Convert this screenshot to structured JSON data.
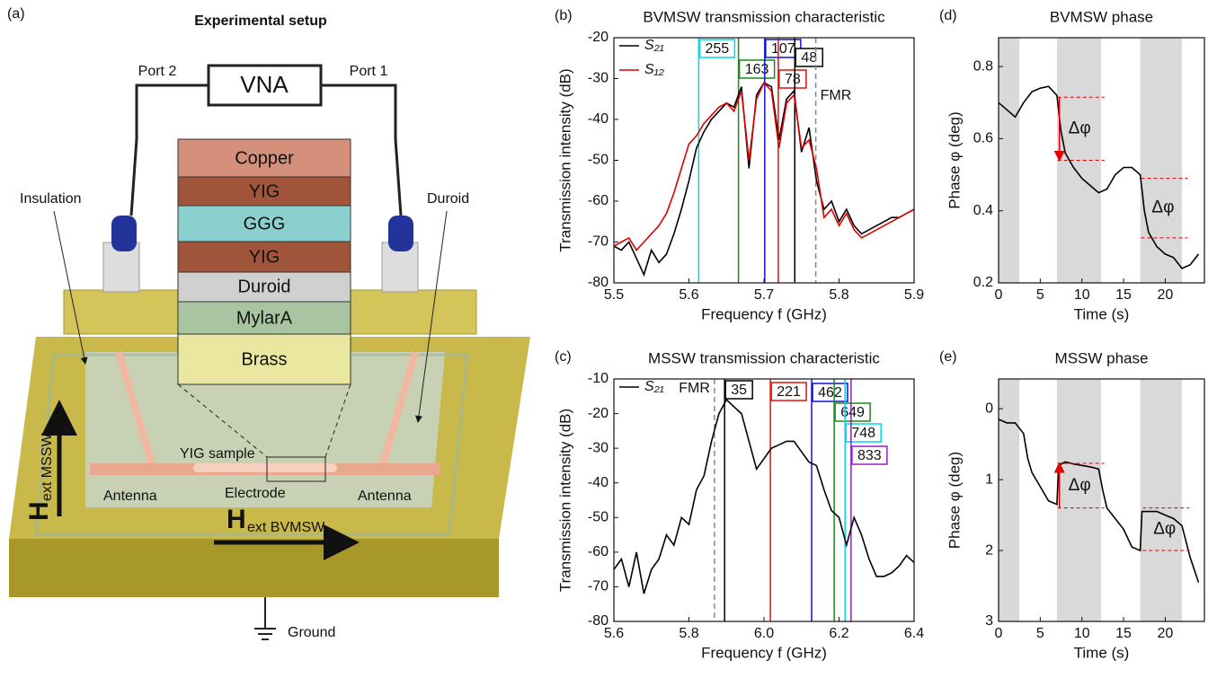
{
  "diagram": {
    "panel_label": "(a)",
    "title": "Experimental setup",
    "vna": "VNA",
    "port2": "Port 2",
    "port1": "Port 1",
    "layers": [
      "Copper",
      "YIG",
      "GGG",
      "YIG",
      "Duroid",
      "MylarA",
      "Brass"
    ],
    "insulation": "Insulation",
    "duroid": "Duroid",
    "sample": "YIG sample",
    "antenna_left": "Antenna",
    "electrode": "Electrode",
    "antenna_right": "Antenna",
    "h_mssw": {
      "symbol": "H",
      "subscript": "ext MSSW"
    },
    "h_bvmsw": {
      "symbol": "H",
      "subscript": "ext BVMSW"
    },
    "ground": "Ground"
  },
  "chart_data": [
    {
      "type": "line",
      "panel_label": "(b)",
      "title": "BVMSW transmission characteristic",
      "x_label": "Frequency f (GHz)",
      "y_label": "Transmission intensity (dB)",
      "x": [
        5.5,
        5.51,
        5.52,
        5.53,
        5.54,
        5.55,
        5.56,
        5.57,
        5.58,
        5.59,
        5.6,
        5.61,
        5.62,
        5.63,
        5.64,
        5.65,
        5.66,
        5.67,
        5.68,
        5.69,
        5.7,
        5.71,
        5.72,
        5.73,
        5.74,
        5.75,
        5.76,
        5.77,
        5.78,
        5.79,
        5.8,
        5.81,
        5.82,
        5.83,
        5.84,
        5.85,
        5.86,
        5.87,
        5.88,
        5.89,
        5.9
      ],
      "series": [
        {
          "name": "S₂₁",
          "color": "#000000",
          "values": [
            -71,
            -72,
            -70,
            -74,
            -78,
            -72,
            -75,
            -73,
            -68,
            -62,
            -55,
            -47,
            -43,
            -40,
            -38,
            -36,
            -37,
            -32,
            -52,
            -34,
            -31,
            -32,
            -45,
            -35,
            -33,
            -48,
            -42,
            -55,
            -62,
            -60,
            -65,
            -62,
            -66,
            -68,
            -67,
            -66,
            -65,
            -64,
            -64,
            -63,
            -62
          ]
        },
        {
          "name": "S₁₂",
          "color": "#e00000",
          "values": [
            -71,
            -70,
            -69,
            -72,
            -70,
            -68,
            -66,
            -63,
            -58,
            -52,
            -46,
            -44,
            -41,
            -39,
            -37,
            -36,
            -38,
            -33,
            -50,
            -35,
            -31,
            -33,
            -47,
            -36,
            -34,
            -47,
            -45,
            -52,
            -64,
            -62,
            -66,
            -63,
            -67,
            -69,
            -68,
            -67,
            -66,
            -65,
            -64,
            -63,
            -62
          ]
        }
      ],
      "markers": [
        {
          "x": 5.613,
          "value": 255,
          "color": "#00d8e8"
        },
        {
          "x": 5.666,
          "value": 163,
          "color": "#1a8a1a"
        },
        {
          "x": 5.701,
          "value": 107,
          "color": "#1010d0"
        },
        {
          "x": 5.719,
          "value": 78,
          "color": "#e01010"
        },
        {
          "x": 5.741,
          "value": 48,
          "color": "#000000"
        },
        {
          "x": 5.769,
          "label": "FMR",
          "color": "#888888",
          "dashed": true
        }
      ],
      "xlim": [
        5.5,
        5.9
      ],
      "xticks": [
        5.5,
        5.6,
        5.7,
        5.8,
        5.9
      ],
      "ylim": [
        -80,
        -20
      ],
      "yticks": [
        -20,
        -30,
        -40,
        -50,
        -60,
        -70,
        -80
      ],
      "legend": "upper left"
    },
    {
      "type": "line",
      "panel_label": "(c)",
      "title": "MSSW transmission characteristic",
      "x_label": "Frequency f (GHz)",
      "y_label": "Transmission intensity (dB)",
      "x": [
        5.6,
        5.62,
        5.64,
        5.66,
        5.68,
        5.7,
        5.72,
        5.74,
        5.76,
        5.78,
        5.8,
        5.82,
        5.84,
        5.86,
        5.88,
        5.9,
        5.92,
        5.94,
        5.96,
        5.98,
        6.0,
        6.02,
        6.04,
        6.06,
        6.08,
        6.1,
        6.12,
        6.14,
        6.16,
        6.18,
        6.2,
        6.22,
        6.24,
        6.26,
        6.28,
        6.3,
        6.32,
        6.34,
        6.36,
        6.38,
        6.4
      ],
      "series": [
        {
          "name": "S₂₁",
          "color": "#000000",
          "values": [
            -65,
            -62,
            -70,
            -60,
            -72,
            -65,
            -62,
            -55,
            -58,
            -50,
            -52,
            -42,
            -38,
            -28,
            -20,
            -16,
            -18,
            -20,
            -28,
            -36,
            -33,
            -30,
            -29,
            -28,
            -28,
            -31,
            -34,
            -35,
            -42,
            -48,
            -50,
            -58,
            -50,
            -55,
            -62,
            -67,
            -67,
            -66,
            -64,
            -61,
            -63
          ]
        }
      ],
      "markers": [
        {
          "x": 5.868,
          "label": "FMR",
          "color": "#888888",
          "dashed": true
        },
        {
          "x": 5.895,
          "value": 35,
          "color": "#000000"
        },
        {
          "x": 6.017,
          "value": 221,
          "color": "#e01010"
        },
        {
          "x": 6.127,
          "value": 462,
          "color": "#1010d0"
        },
        {
          "x": 6.187,
          "value": 649,
          "color": "#1a8a1a"
        },
        {
          "x": 6.216,
          "value": 748,
          "color": "#00d8e8"
        },
        {
          "x": 6.232,
          "value": 833,
          "color": "#9020c0"
        }
      ],
      "xlim": [
        5.6,
        6.4
      ],
      "xticks": [
        5.6,
        5.8,
        {
          "value": 6,
          "label": "6.0"
        },
        6.2,
        6.4
      ],
      "ylim": [
        -80,
        -10
      ],
      "yticks": [
        -10,
        -20,
        -30,
        -40,
        -50,
        -60,
        -70,
        -80
      ],
      "legend": "upper left"
    },
    {
      "type": "line",
      "panel_label": "(d)",
      "title": "BVMSW phase",
      "x_label": "Time (s)",
      "y_label": "Phase φ (deg)",
      "x": [
        0,
        1,
        2,
        3,
        4,
        5,
        6,
        7,
        7.5,
        8,
        9,
        10,
        11,
        12,
        13,
        14,
        15,
        16,
        17,
        17.5,
        18,
        19,
        20,
        21,
        22,
        23,
        24
      ],
      "series": [
        {
          "color": "#000000",
          "values": [
            0.7,
            0.68,
            0.66,
            0.7,
            0.73,
            0.74,
            0.745,
            0.72,
            0.62,
            0.56,
            0.52,
            0.49,
            0.47,
            0.45,
            0.46,
            0.5,
            0.52,
            0.52,
            0.5,
            0.4,
            0.34,
            0.3,
            0.28,
            0.27,
            0.24,
            0.25,
            0.28
          ]
        }
      ],
      "shaded": [
        [
          0,
          2.5
        ],
        [
          7,
          12.3
        ],
        [
          17,
          22
        ]
      ],
      "annotations": [
        {
          "text": "Δφ",
          "x": 7.3,
          "y_from": 0.715,
          "y_to": 0.54,
          "arrow": true
        },
        {
          "text": "Δφ",
          "x": 17.3,
          "y_from": 0.49,
          "y_to": 0.325,
          "arrow": false
        }
      ],
      "xlim": [
        0,
        24.7
      ],
      "xticks": [
        0,
        5,
        10,
        15,
        20
      ],
      "ylim": [
        0.2,
        0.88
      ],
      "yticks": [
        0.2,
        0.4,
        0.6,
        0.8
      ]
    },
    {
      "type": "line",
      "panel_label": "(e)",
      "title": "MSSW phase",
      "x_label": "Time (s)",
      "y_label": "Phase φ (deg)",
      "x": [
        0,
        1,
        2,
        3,
        3.5,
        4,
        5,
        6,
        7,
        7.2,
        8,
        9,
        10,
        11,
        12,
        12.5,
        13,
        14,
        15,
        16,
        17,
        17.2,
        18,
        19,
        20,
        21,
        22,
        23,
        24
      ],
      "series": [
        {
          "color": "#000000",
          "values": [
            0.15,
            0.2,
            0.2,
            0.35,
            0.7,
            0.9,
            1.1,
            1.3,
            1.35,
            0.8,
            0.75,
            0.78,
            0.8,
            0.82,
            0.85,
            1.15,
            1.4,
            1.55,
            1.7,
            1.95,
            2,
            1.45,
            1.45,
            1.45,
            1.5,
            1.55,
            1.65,
            2.1,
            2.45
          ]
        }
      ],
      "shaded": [
        [
          0,
          2.5
        ],
        [
          7,
          12.3
        ],
        [
          17,
          22
        ]
      ],
      "annotations": [
        {
          "text": "Δφ",
          "x": 7.3,
          "y_from": 1.4,
          "y_to": 0.77,
          "arrow": true
        },
        {
          "text": "Δφ",
          "x": 17.5,
          "y_from": 1.4,
          "y_to": 2,
          "arrow": false
        }
      ],
      "xlim": [
        0,
        24.7
      ],
      "xticks": [
        0,
        5,
        10,
        15,
        20
      ],
      "ylim": [
        3,
        -0.42
      ],
      "yticks": [
        0,
        1,
        2,
        3
      ]
    }
  ]
}
